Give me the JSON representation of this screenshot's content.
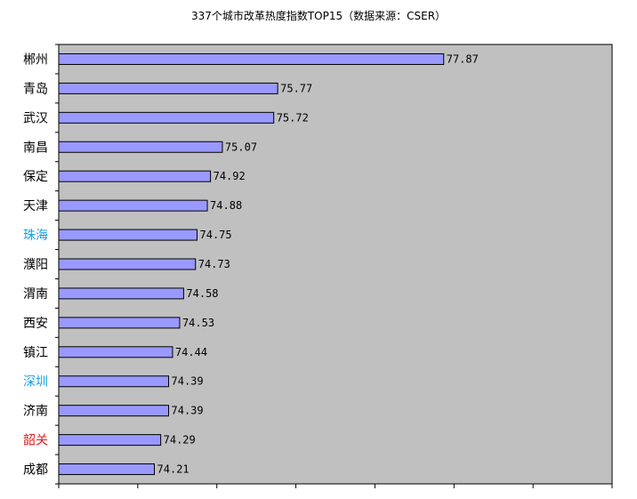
{
  "chart_data": {
    "type": "bar",
    "orientation": "horizontal",
    "title": "337个城市改革热度指数TOP15（数据来源：CSER）",
    "categories": [
      "郴州",
      "青岛",
      "武汉",
      "南昌",
      "保定",
      "天津",
      "珠海",
      "濮阳",
      "渭南",
      "西安",
      "镇江",
      "深圳",
      "济南",
      "韶关",
      "成都"
    ],
    "values": [
      77.87,
      75.77,
      75.72,
      75.07,
      74.92,
      74.88,
      74.75,
      74.73,
      74.58,
      74.53,
      74.44,
      74.39,
      74.39,
      74.29,
      74.21
    ],
    "value_labels": [
      "77.87",
      "75.77",
      "75.72",
      "75.07",
      "74.92",
      "74.88",
      "74.75",
      "74.73",
      "74.58",
      "74.53",
      "74.44",
      "74.39",
      "74.39",
      "74.29",
      "74.21"
    ],
    "category_colors": [
      "#000000",
      "#000000",
      "#000000",
      "#000000",
      "#000000",
      "#000000",
      "#1a9fe0",
      "#000000",
      "#000000",
      "#000000",
      "#000000",
      "#1a9fe0",
      "#000000",
      "#e02020",
      "#000000"
    ],
    "xlim": [
      73,
      80
    ],
    "bar_color": "#9999ff",
    "plot_background": "#c0c0c0",
    "grid": false,
    "legend": "none"
  }
}
